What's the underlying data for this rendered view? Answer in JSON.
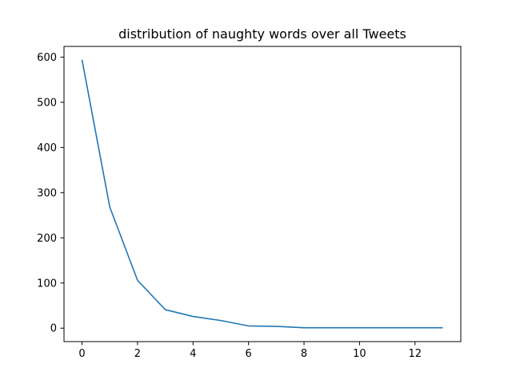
{
  "chart_data": {
    "type": "line",
    "title": "distribution of naughty words over all Tweets",
    "xlabel": "",
    "ylabel": "",
    "xlim": [
      -0.65,
      13.65
    ],
    "ylim": [
      -29.7,
      623.7
    ],
    "xticks": [
      0,
      2,
      4,
      6,
      8,
      10,
      12
    ],
    "yticks": [
      0,
      100,
      200,
      300,
      400,
      500,
      600
    ],
    "grid": false,
    "legend": "none",
    "series": [
      {
        "color": "#1f77b4",
        "x": [
          0,
          1,
          2,
          3,
          4,
          5,
          6,
          7,
          8,
          9,
          10,
          11,
          12,
          13
        ],
        "y": [
          594,
          268,
          106,
          41,
          26,
          17,
          5,
          4,
          1,
          1,
          1,
          1,
          1,
          1
        ]
      }
    ]
  }
}
